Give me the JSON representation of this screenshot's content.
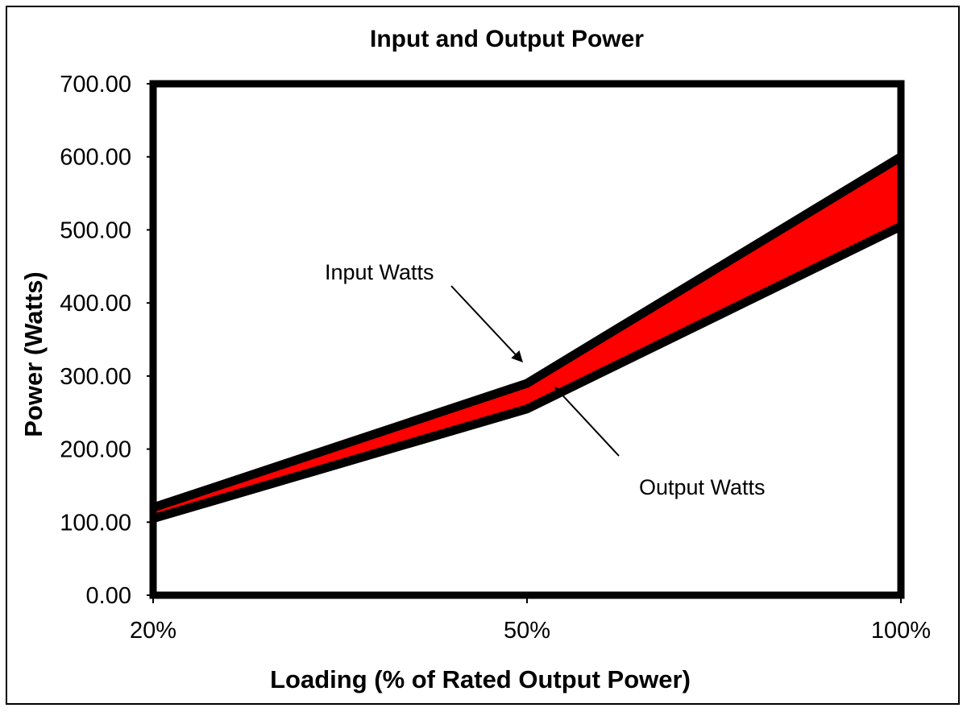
{
  "chart_data": {
    "type": "area",
    "title": "Input and Output Power",
    "xlabel": "Loading (% of Rated Output Power)",
    "ylabel": "Power (Watts)",
    "categories": [
      "20%",
      "50%",
      "100%"
    ],
    "series": [
      {
        "name": "Input Watts",
        "values": [
          120,
          290,
          600
        ]
      },
      {
        "name": "Output Watts",
        "values": [
          105,
          255,
          505
        ]
      }
    ],
    "ylim": [
      0,
      700
    ],
    "yticks": [
      "0.00",
      "100.00",
      "200.00",
      "300.00",
      "400.00",
      "500.00",
      "600.00",
      "700.00"
    ],
    "fill_color": "#ff0000",
    "annotations": [
      "Input Watts",
      "Output Watts"
    ],
    "grid": false,
    "legend": "none"
  }
}
